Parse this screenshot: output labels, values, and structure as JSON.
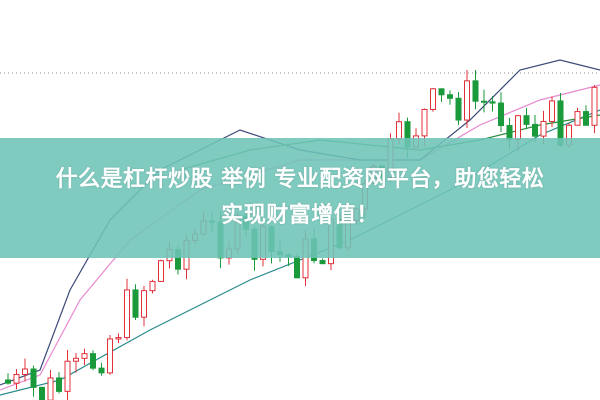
{
  "banner": {
    "line1": "什么是杠杆炒股 举例 专业配资网平台，助您轻松",
    "line2": "实现财富增值！"
  },
  "colors": {
    "banner": "#6ec4b7",
    "up_candle": "#e0303a",
    "down_candle": "#1a9a3a",
    "ma_pink": "#e88ad0",
    "ma_teal": "#2a8a8a",
    "ma_navy": "#3b4a7a",
    "ma_green": "#2e8b3a"
  }
}
